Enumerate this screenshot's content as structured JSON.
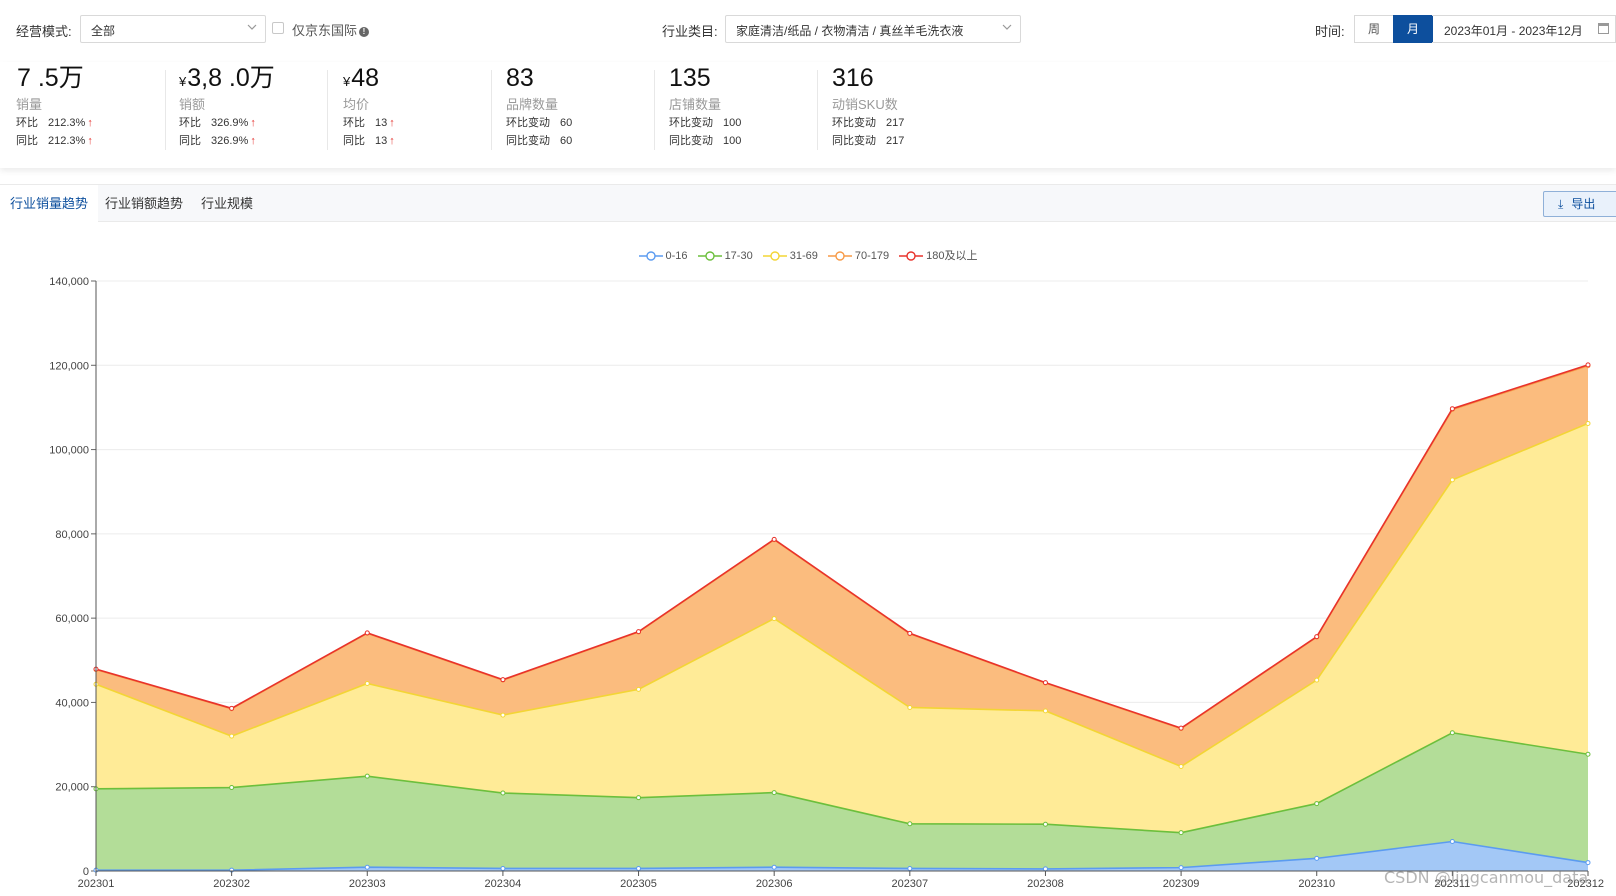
{
  "filters": {
    "mode_label": "经营模式:",
    "mode_value": "全部",
    "jd_intl_label": "仅京东国际",
    "category_label": "行业类目:",
    "category_value": "家庭清洁/纸品 / 衣物清洁 / 真丝羊毛洗衣液",
    "time_label": "时间:",
    "week_label": "周",
    "month_label": "月",
    "date_range": "2023年01月 - 2023年12月"
  },
  "kpis": [
    {
      "value": "7 .5万",
      "currency": "",
      "name": "销量",
      "row1_k": "环比",
      "row1_v": "212.3%",
      "row1_up": "↑",
      "row2_k": "同比",
      "row2_v": "212.3%",
      "row2_up": "↑"
    },
    {
      "value": "3,8 .0万",
      "currency": "¥",
      "name": "销额",
      "row1_k": "环比",
      "row1_v": "326.9%",
      "row1_up": "↑",
      "row2_k": "同比",
      "row2_v": "326.9%",
      "row2_up": "↑"
    },
    {
      "value": "48",
      "currency": "¥",
      "name": "均价",
      "row1_k": "环比",
      "row1_v": "13",
      "row1_up": "↑",
      "row2_k": "同比",
      "row2_v": "13",
      "row2_up": "↑"
    },
    {
      "value": "83",
      "currency": "",
      "name": "品牌数量",
      "row1_k": "环比变动",
      "row1_v": "60",
      "row1_up": "",
      "row2_k": "同比变动",
      "row2_v": "60",
      "row2_up": ""
    },
    {
      "value": "135",
      "currency": "",
      "name": "店铺数量",
      "row1_k": "环比变动",
      "row1_v": "100",
      "row1_up": "",
      "row2_k": "同比变动",
      "row2_v": "100",
      "row2_up": ""
    },
    {
      "value": "316",
      "currency": "",
      "name": "动销SKU数",
      "row1_k": "环比变动",
      "row1_v": "217",
      "row1_up": "",
      "row2_k": "同比变动",
      "row2_v": "217",
      "row2_up": ""
    }
  ],
  "tabs": [
    "行业销量趋势",
    "行业销额趋势",
    "行业规模"
  ],
  "export_label": "导出",
  "watermark": "CSDN @lingcanmou_data",
  "chart_data": {
    "type": "area",
    "stacked": true,
    "categories": [
      "202301",
      "202302",
      "202303",
      "202304",
      "202305",
      "202306",
      "202307",
      "202308",
      "202309",
      "202310",
      "202311",
      "202312"
    ],
    "ylim": [
      0,
      140000
    ],
    "yticks": [
      0,
      20000,
      40000,
      60000,
      80000,
      100000,
      120000,
      140000
    ],
    "ytick_labels": [
      "0",
      "20,000",
      "40,000",
      "60,000",
      "80,000",
      "100,000",
      "120,000",
      "140,000"
    ],
    "legend_position": "top-center",
    "grid": true,
    "series": [
      {
        "name": "0-16",
        "color": "#5b9bf0",
        "fill": "#a3c8f6",
        "values": [
          200,
          200,
          900,
          600,
          600,
          900,
          600,
          500,
          800,
          3000,
          7000,
          2000
        ]
      },
      {
        "name": "17-30",
        "color": "#6cbf3c",
        "fill": "#b3dd98",
        "values": [
          19300,
          19600,
          21600,
          17900,
          16800,
          17700,
          10600,
          10600,
          8300,
          13000,
          25800,
          25700
        ]
      },
      {
        "name": "31-69",
        "color": "#f3d535",
        "fill": "#ffeb97",
        "values": [
          24800,
          12200,
          22000,
          18500,
          25700,
          41300,
          27600,
          26900,
          15700,
          29300,
          60000,
          78500
        ]
      },
      {
        "name": "70-179",
        "color": "#f79a46",
        "fill": "#fbbc7e",
        "values": [
          3500,
          6500,
          11900,
          8300,
          13600,
          18700,
          17500,
          6600,
          9000,
          10200,
          16700,
          13700
        ]
      },
      {
        "name": "180及以上",
        "color": "#e8322b",
        "fill": "#f08a7a",
        "values": [
          100,
          100,
          100,
          100,
          100,
          100,
          100,
          100,
          100,
          100,
          200,
          200
        ]
      }
    ]
  }
}
